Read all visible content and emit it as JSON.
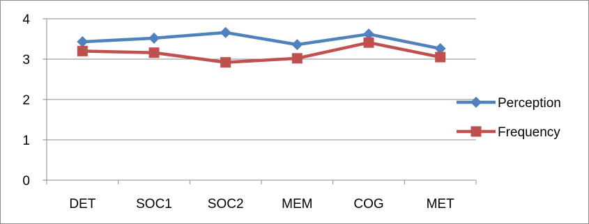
{
  "chart_data": {
    "type": "line",
    "categories": [
      "DET",
      "SOC1",
      "SOC2",
      "MEM",
      "COG",
      "MET"
    ],
    "series": [
      {
        "name": "Perception",
        "values": [
          3.43,
          3.52,
          3.66,
          3.36,
          3.62,
          3.26
        ],
        "color": "#4f81bd",
        "marker": "diamond"
      },
      {
        "name": "Frequency",
        "values": [
          3.2,
          3.16,
          2.92,
          3.02,
          3.41,
          3.05
        ],
        "color": "#c0504d",
        "marker": "square"
      }
    ],
    "ylim": [
      0,
      4
    ],
    "yticks": [
      "0",
      "1",
      "2",
      "3",
      "4"
    ],
    "grid": true,
    "legend_position": "right",
    "title": "",
    "xlabel": "",
    "ylabel": ""
  }
}
